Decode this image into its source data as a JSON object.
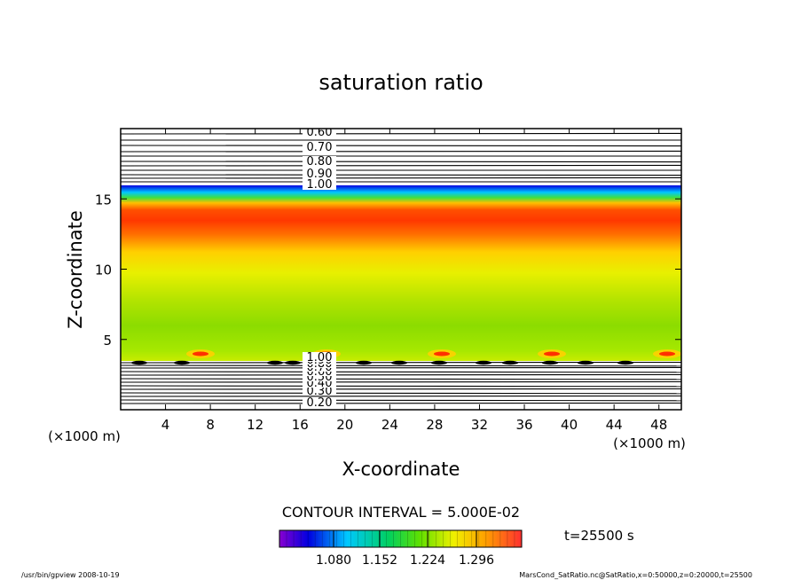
{
  "chart_data": {
    "type": "heatmap",
    "title": "saturation ratio",
    "xlabel": "X-coordinate",
    "ylabel": "Z-coordinate",
    "x_unit": "(×1000 m)",
    "x_unit_right": "(×1000 m)",
    "xlim": [
      0,
      50
    ],
    "ylim": [
      0,
      20
    ],
    "x_ticks": [
      4,
      8,
      12,
      16,
      20,
      24,
      28,
      32,
      36,
      40,
      44,
      48
    ],
    "y_ticks": [
      5,
      10,
      15
    ],
    "contour_interval": "CONTOUR INTERVAL = 5.000E-02",
    "time_label": "t=25500 s",
    "colorbar_ticks": [
      "1.080",
      "1.152",
      "1.224",
      "1.296"
    ],
    "upper_contour_labels": [
      "0.60",
      "0.70",
      "0.80",
      "0.90",
      "1.00"
    ],
    "lower_contour_labels": [
      "0.20",
      "0.30",
      "0.40",
      "0.50",
      "0.60",
      "0.70",
      "0.80",
      "0.90",
      "1.00"
    ],
    "vertical_profile": [
      {
        "z": 3.6,
        "value": 1.05
      },
      {
        "z": 4.5,
        "value": 1.19
      },
      {
        "z": 6.5,
        "value": 1.2
      },
      {
        "z": 9.0,
        "value": 1.22
      },
      {
        "z": 11.0,
        "value": 1.24
      },
      {
        "z": 12.5,
        "value": 1.28
      },
      {
        "z": 13.5,
        "value": 1.31
      },
      {
        "z": 14.5,
        "value": 1.3
      },
      {
        "z": 15.0,
        "value": 1.24
      },
      {
        "z": 15.5,
        "value": 1.16
      },
      {
        "z": 15.8,
        "value": 1.1
      },
      {
        "z": 16.0,
        "value": 1.07
      }
    ],
    "colors": {
      "violet": "#7a00d0",
      "blue": "#0000e0",
      "cyan": "#00d8ff",
      "green": "#20d020",
      "yellow": "#f0f000",
      "red": "#ff2000"
    }
  },
  "footer": {
    "left": "/usr/bin/gpview   2008-10-19",
    "right": "MarsCond_SatRatio.nc@SatRatio,x=0:50000,z=0:20000,t=25500"
  }
}
